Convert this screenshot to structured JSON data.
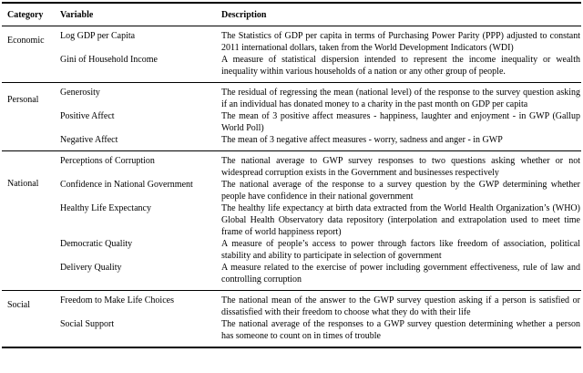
{
  "table": {
    "columns": [
      "Category",
      "Variable",
      "Description"
    ],
    "sections": [
      {
        "category": "Economic",
        "rows": [
          {
            "variable": "Log GDP per Capita",
            "description": "The Statistics of GDP per capita in terms of Purchasing Power Parity (PPP) adjusted to constant 2011 international dollars, taken from the World Development Indicators (WDI)"
          },
          {
            "variable": "Gini of Household Income",
            "description": "A measure of statistical dispersion intended to represent the income inequality or wealth inequality within various households of a nation or any other group of people."
          }
        ]
      },
      {
        "category": "Personal",
        "rows": [
          {
            "variable": "Generosity",
            "description": "The residual of regressing the mean (national level) of the response to the survey question asking if an individual has donated money to a charity in the past month on GDP per capita"
          },
          {
            "variable": "Positive Affect",
            "description": "The mean of 3 positive affect measures - happiness, laughter and enjoyment - in GWP (Gallup World Poll)"
          },
          {
            "variable": "Negative Affect",
            "description": "The mean of 3 negative affect measures - worry, sadness and anger - in GWP"
          }
        ]
      },
      {
        "category": "National",
        "rows": [
          {
            "variable": "Perceptions of Corruption",
            "description": "The national average to GWP survey responses to two questions asking whether or not widespread corruption exists in the Government and businesses respectively"
          },
          {
            "variable": "Confidence in National Government",
            "description": "The national average of the response to a survey question by the GWP determining whether people have confidence in their national government"
          },
          {
            "variable": "Healthy Life Expectancy",
            "description": "The healthy life expectancy at birth data extracted from the World Health Organization’s (WHO) Global Health Observatory data repository (interpolation and extrapolation used to meet time frame of world happiness report)"
          },
          {
            "variable": "Democratic Quality",
            "description": "A measure of people’s access to power through factors like freedom of association, political stability and ability to participate in selection of government"
          },
          {
            "variable": "Delivery Quality",
            "description": "A measure related to the exercise of power including government effectiveness, rule of law and controlling corruption"
          }
        ]
      },
      {
        "category": "Social",
        "rows": [
          {
            "variable": "Freedom to Make Life Choices",
            "description": "The national mean of the answer to the GWP survey question asking if a person is satisfied or dissatisfied with their freedom to choose what they do with their life"
          },
          {
            "variable": "Social Support",
            "description": "The national average of the responses to a GWP survey question determining whether a person has someone to count on in times of trouble"
          }
        ]
      }
    ]
  }
}
